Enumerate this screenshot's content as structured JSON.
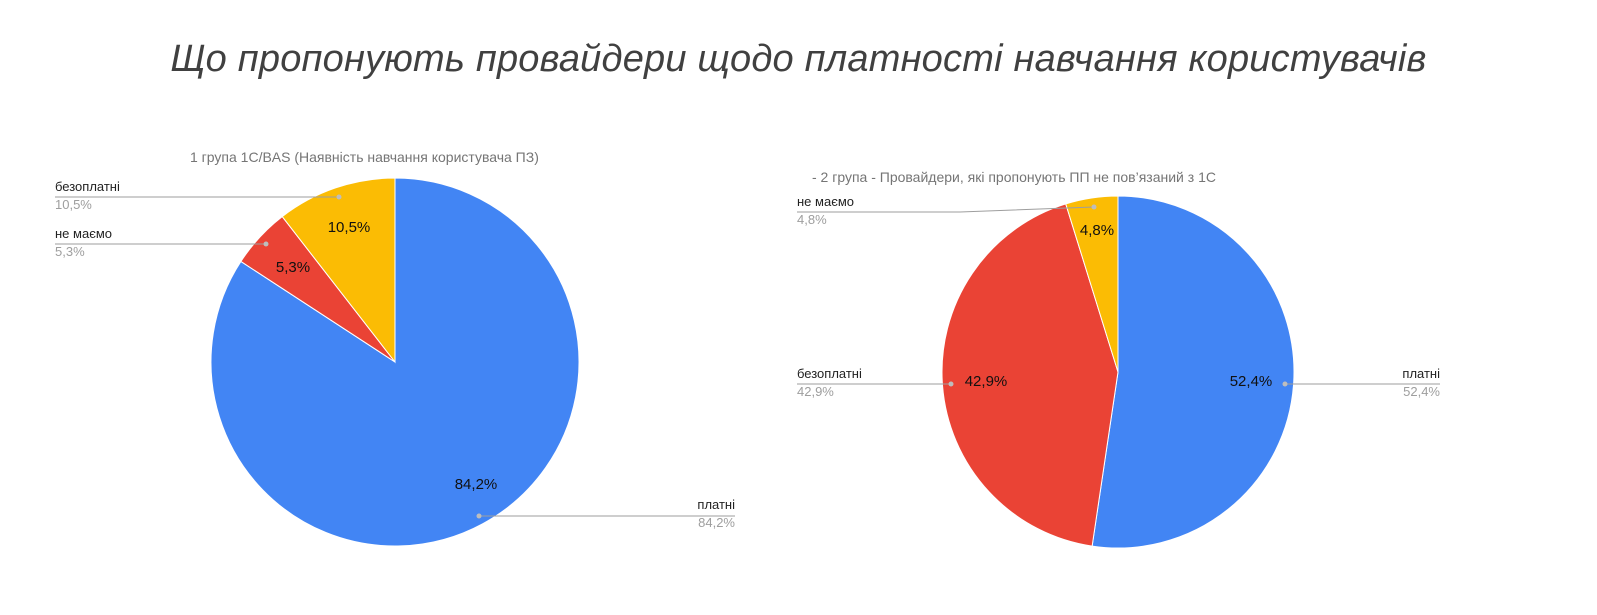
{
  "page": {
    "title": "Що пропонують провайдери щодо платності навчання користувачів"
  },
  "chart_data": [
    {
      "type": "pie",
      "title": "1 група 1С/BAS (Наявність навчання користувача ПЗ)",
      "slices": [
        {
          "label": "платні",
          "value": 84.2,
          "display": "84,2%",
          "color": "#4285f4"
        },
        {
          "label": "не маємо",
          "value": 5.3,
          "display": "5,3%",
          "color": "#ea4335"
        },
        {
          "label": "безоплатні",
          "value": 10.5,
          "display": "10,5%",
          "color": "#fbbc04"
        }
      ]
    },
    {
      "type": "pie",
      "title": "- 2 група - Провайдери, які пропонують ПП не пов’язаний з 1С",
      "slices": [
        {
          "label": "платні",
          "value": 52.4,
          "display": "52,4%",
          "color": "#4285f4"
        },
        {
          "label": "безоплатні",
          "value": 42.9,
          "display": "42,9%",
          "color": "#ea4335"
        },
        {
          "label": "не маємо",
          "value": 4.8,
          "display": "4,8%",
          "color": "#fbbc04"
        }
      ]
    }
  ]
}
